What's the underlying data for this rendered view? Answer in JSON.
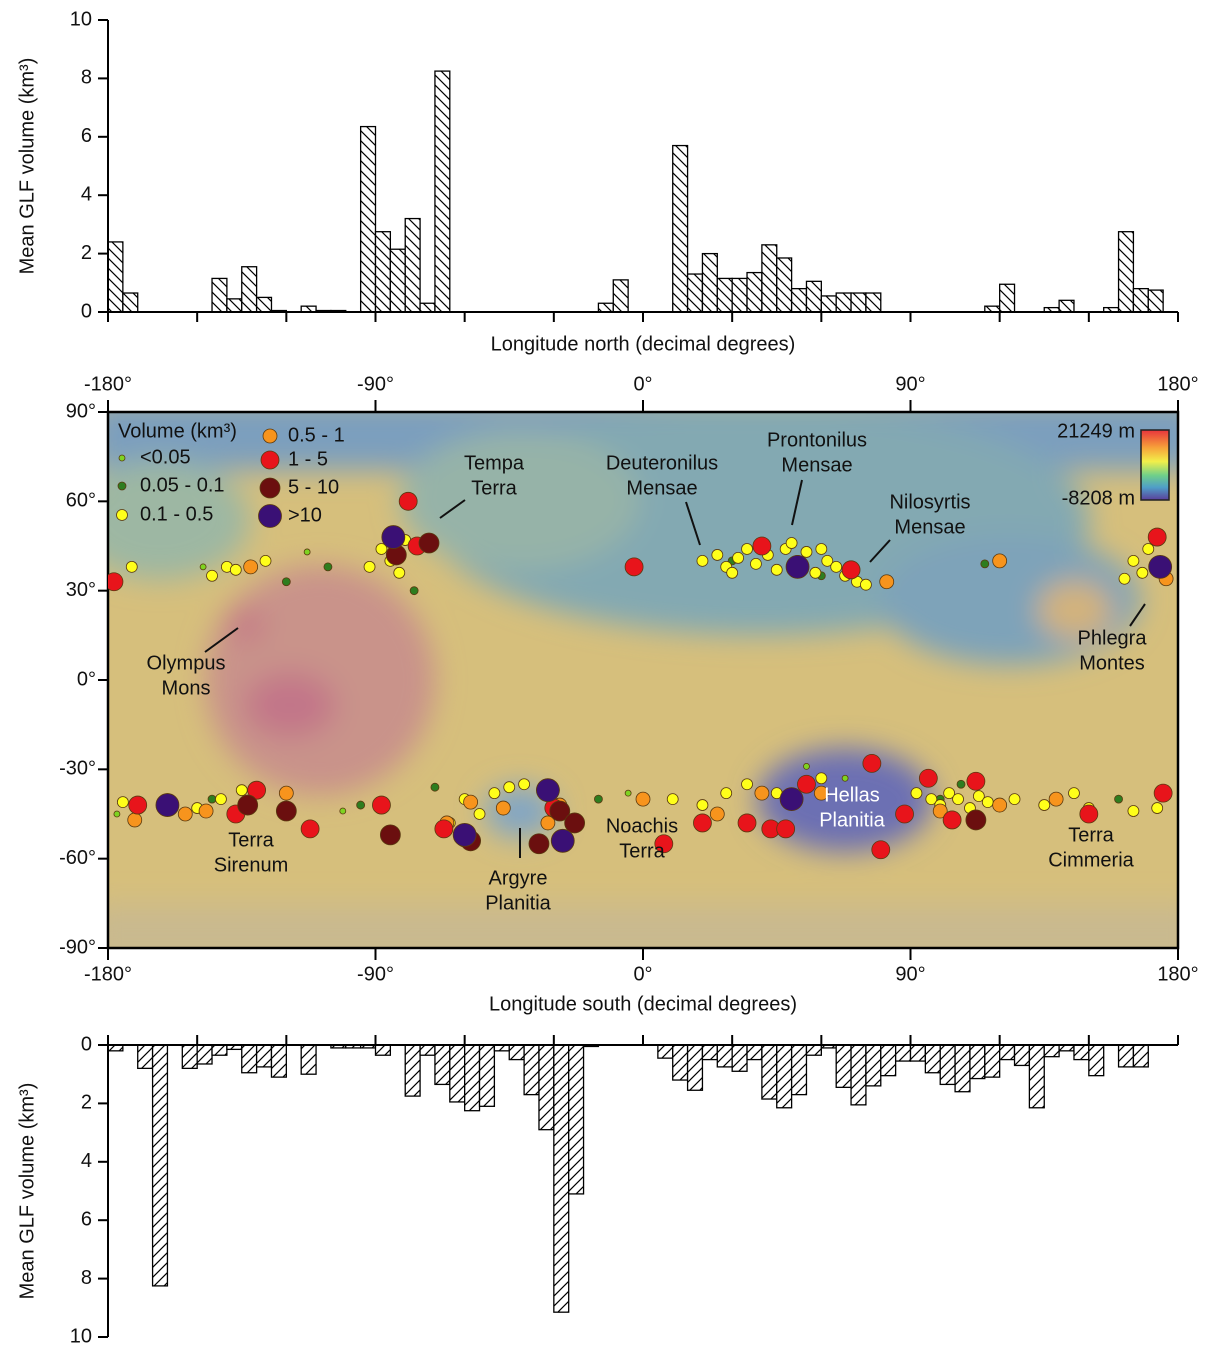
{
  "chart_data": [
    {
      "type": "histogram",
      "ylabel": "Mean GLF volume (km³)",
      "xlabel": "Longitude north (decimal degrees)",
      "bins": [
        -180,
        -175,
        -170,
        -165,
        -160,
        -155,
        -150,
        -145,
        -140,
        -135,
        -130,
        -125,
        -120,
        -115,
        -110,
        -105,
        -100,
        -95,
        -90,
        -85,
        -80,
        -75,
        -70,
        -65,
        -60,
        -55,
        -50,
        -45,
        -40,
        -35,
        -30,
        -25,
        -20,
        -15,
        -10,
        -5,
        0,
        5,
        10,
        15,
        20,
        25,
        30,
        35,
        40,
        45,
        50,
        55,
        60,
        65,
        70,
        75,
        80,
        85,
        90,
        95,
        100,
        105,
        110,
        115,
        120,
        125,
        130,
        135,
        140,
        145,
        150,
        155,
        160,
        165,
        170,
        175,
        180
      ],
      "values": [
        2.4,
        0.65,
        0,
        0,
        0,
        0,
        0,
        1.15,
        0.45,
        1.55,
        0.5,
        0.05,
        0,
        0.2,
        0.05,
        0.05,
        0,
        6.35,
        2.75,
        2.15,
        3.2,
        0.3,
        8.25,
        0,
        0,
        0,
        0,
        0,
        0,
        0,
        0,
        0,
        0,
        0.3,
        1.1,
        0,
        0,
        0,
        5.7,
        1.3,
        2.0,
        1.15,
        1.15,
        1.35,
        2.3,
        1.85,
        0.8,
        1.05,
        0.55,
        0.65,
        0.65,
        0.65,
        0,
        0,
        0,
        0,
        0,
        0,
        0,
        0.2,
        0.95,
        0,
        0,
        0.15,
        0.4,
        0,
        0,
        0.15,
        2.75,
        0.8,
        0.75,
        0
      ],
      "xlim": [
        -180,
        180
      ],
      "ylim": [
        0,
        10
      ],
      "yticks": [
        0,
        2,
        4,
        6,
        8,
        10
      ],
      "color": "#000000",
      "hatch": "\\",
      "y_inverted": false
    },
    {
      "type": "scatter",
      "xlim": [
        -180,
        180
      ],
      "ylim": [
        -90,
        90
      ],
      "xticks": [
        {
          "value": -180,
          "label": "-180°"
        },
        {
          "value": -90,
          "label": "-90°"
        },
        {
          "value": 0,
          "label": "0°"
        },
        {
          "value": 90,
          "label": "90°"
        },
        {
          "value": 180,
          "label": "180°"
        }
      ],
      "yticks": [
        {
          "value": 90,
          "label": "90°"
        },
        {
          "value": 60,
          "label": "60°"
        },
        {
          "value": 30,
          "label": "30°"
        },
        {
          "value": 0,
          "label": "0°"
        },
        {
          "value": -30,
          "label": "-30°"
        },
        {
          "value": -60,
          "label": "-60°"
        },
        {
          "value": -90,
          "label": "-90°"
        }
      ],
      "legend_title": "Volume (km³)",
      "colorbar": {
        "max": "21249 m",
        "min": "-8208 m"
      },
      "annotations": [
        [
          "Olympus",
          "Mons"
        ],
        [
          "Tempa",
          "Terra"
        ],
        [
          "Deuteronilus",
          "Mensae"
        ],
        [
          "Prontonilus",
          "Mensae"
        ],
        [
          "Nilosyrtis",
          "Mensae"
        ],
        [
          "Phlegra",
          "Montes"
        ],
        [
          "Terra",
          "Sirenum"
        ],
        [
          "Argyre",
          "Planitia"
        ],
        [
          "Noachis",
          "Terra"
        ],
        [
          "Hellas",
          "Planitia"
        ],
        [
          "Terra",
          "Cimmeria"
        ]
      ],
      "series": [
        {
          "name": "<0.05",
          "color": "#7ed321",
          "x": [
            -177,
            -5,
            -113,
            55,
            68,
            -148,
            -101
          ],
          "y": [
            -45,
            -38,
            43,
            -29,
            -33,
            38,
            -44
          ]
        },
        {
          "name": "0.05 - 0.1",
          "color": "#2e7d1f",
          "x": [
            -120,
            -106,
            -95,
            -70,
            -15,
            30,
            60,
            100,
            115,
            160,
            -77,
            107,
            -145
          ],
          "y": [
            33,
            38,
            -42,
            -36,
            -40,
            40,
            35,
            -40,
            39,
            -40,
            30,
            -35,
            -40
          ]
        },
        {
          "name": "0.1 - 0.5",
          "color": "#ffff1a",
          "x": [
            20,
            25,
            28,
            32,
            35,
            38,
            42,
            45,
            48,
            52,
            55,
            58,
            62,
            65,
            68,
            72,
            75,
            30,
            50,
            60,
            -88,
            -85,
            -92,
            -82,
            -80,
            -140,
            -145,
            -137,
            165,
            168,
            162,
            170,
            -178,
            -172,
            -127,
            -175,
            -160,
            -150,
            -142,
            -135,
            -120,
            -60,
            -55,
            -50,
            -45,
            -65,
            -40,
            -30,
            10,
            20,
            28,
            35,
            45,
            55,
            60,
            92,
            97,
            100,
            103,
            106,
            110,
            113,
            116,
            125,
            135,
            145,
            150,
            165,
            173
          ],
          "y": [
            40,
            42,
            38,
            41,
            44,
            39,
            42,
            37,
            44,
            40,
            43,
            36,
            40,
            38,
            35,
            33,
            32,
            36,
            46,
            44,
            44,
            40,
            38,
            36,
            47,
            38,
            35,
            37,
            40,
            36,
            34,
            44,
            34,
            38,
            40,
            -41,
            -40,
            -43,
            -40,
            -37,
            -45,
            -40,
            -45,
            -38,
            -36,
            -48,
            -35,
            -37,
            -40,
            -42,
            -38,
            -35,
            -38,
            -36,
            -33,
            -38,
            -40,
            -42,
            -38,
            -40,
            -43,
            -39,
            -41,
            -40,
            -42,
            -38,
            -43,
            -44,
            -43
          ]
        },
        {
          "name": "0.5 - 1",
          "color": "#f7941d",
          "x": [
            -171,
            -154,
            -147,
            -120,
            -66,
            -47,
            -28,
            -32,
            0,
            25,
            40,
            60,
            100,
            120,
            139,
            -132,
            120,
            82,
            176,
            -58
          ],
          "y": [
            -47,
            -45,
            -44,
            -38,
            -48,
            -43,
            -42,
            -48,
            -40,
            -45,
            -38,
            -38,
            -44,
            -42,
            -40,
            38,
            40,
            33,
            34,
            -41
          ]
        },
        {
          "name": "1 - 5",
          "color": "#e8141b",
          "x": [
            -178,
            -133,
            -137,
            -112,
            -79,
            -76,
            -88,
            -67,
            -60,
            -30,
            -3,
            7,
            20,
            35,
            43,
            48,
            55,
            77,
            80,
            88,
            96,
            104,
            112,
            150,
            175,
            173,
            40,
            70,
            -130,
            -170
          ],
          "y": [
            33,
            -42,
            -45,
            -50,
            60,
            45,
            -42,
            -50,
            -53,
            -43,
            38,
            -55,
            -48,
            -48,
            -50,
            -50,
            -35,
            -28,
            -57,
            -45,
            -33,
            -47,
            -34,
            -45,
            -38,
            48,
            45,
            37,
            -37,
            -42
          ]
        },
        {
          "name": "5 - 10",
          "color": "#6b0f0f",
          "x": [
            -83,
            -72,
            -28,
            -35,
            -23,
            -133,
            -85,
            -58,
            112,
            -120
          ],
          "y": [
            42,
            46,
            -44,
            -55,
            -48,
            -42,
            -52,
            -54,
            -47,
            -44
          ]
        },
        {
          "name": ">10",
          "color": "#3a1075",
          "x": [
            -160,
            -32,
            -27,
            50,
            52,
            174,
            -60,
            -84
          ],
          "y": [
            -42,
            -37,
            -54,
            -40,
            38,
            38,
            -52,
            48
          ]
        }
      ]
    },
    {
      "type": "histogram",
      "ylabel": "Mean GLF volume (km³)",
      "xlabel": "Longitude south (decimal degrees)",
      "bins": [
        -180,
        -175,
        -170,
        -165,
        -160,
        -155,
        -150,
        -145,
        -140,
        -135,
        -130,
        -125,
        -120,
        -115,
        -110,
        -105,
        -100,
        -95,
        -90,
        -85,
        -80,
        -75,
        -70,
        -65,
        -60,
        -55,
        -50,
        -45,
        -40,
        -35,
        -30,
        -25,
        -20,
        -15,
        -10,
        -5,
        0,
        5,
        10,
        15,
        20,
        25,
        30,
        35,
        40,
        45,
        50,
        55,
        60,
        65,
        70,
        75,
        80,
        85,
        90,
        95,
        100,
        105,
        110,
        115,
        120,
        125,
        130,
        135,
        140,
        145,
        150,
        155,
        160,
        165,
        170,
        175,
        180
      ],
      "values": [
        0.2,
        0,
        0.8,
        8.25,
        0,
        0.8,
        0.65,
        0.35,
        0.15,
        0.95,
        0.75,
        1.1,
        0,
        1.0,
        0,
        0.1,
        0.1,
        0.1,
        0.35,
        0,
        1.75,
        0.35,
        1.35,
        1.95,
        2.25,
        2.1,
        0.2,
        0.5,
        1.7,
        2.9,
        9.15,
        5.1,
        0.05,
        0,
        0,
        0,
        0,
        0.45,
        1.2,
        1.55,
        0.5,
        0.75,
        0.9,
        0.5,
        1.85,
        2.15,
        1.7,
        0.35,
        0.1,
        1.45,
        2.05,
        1.4,
        1.05,
        0.55,
        0.55,
        0.95,
        1.35,
        1.6,
        1.15,
        1.1,
        0.5,
        0.7,
        2.15,
        0.4,
        0.2,
        0.5,
        1.05,
        0,
        0.75,
        0.75,
        0,
        0
      ],
      "xlim": [
        -180,
        180
      ],
      "ylim": [
        0,
        10
      ],
      "yticks": [
        0,
        2,
        4,
        6,
        8,
        10
      ],
      "color": "#000000",
      "hatch": "/",
      "y_inverted": true
    }
  ]
}
